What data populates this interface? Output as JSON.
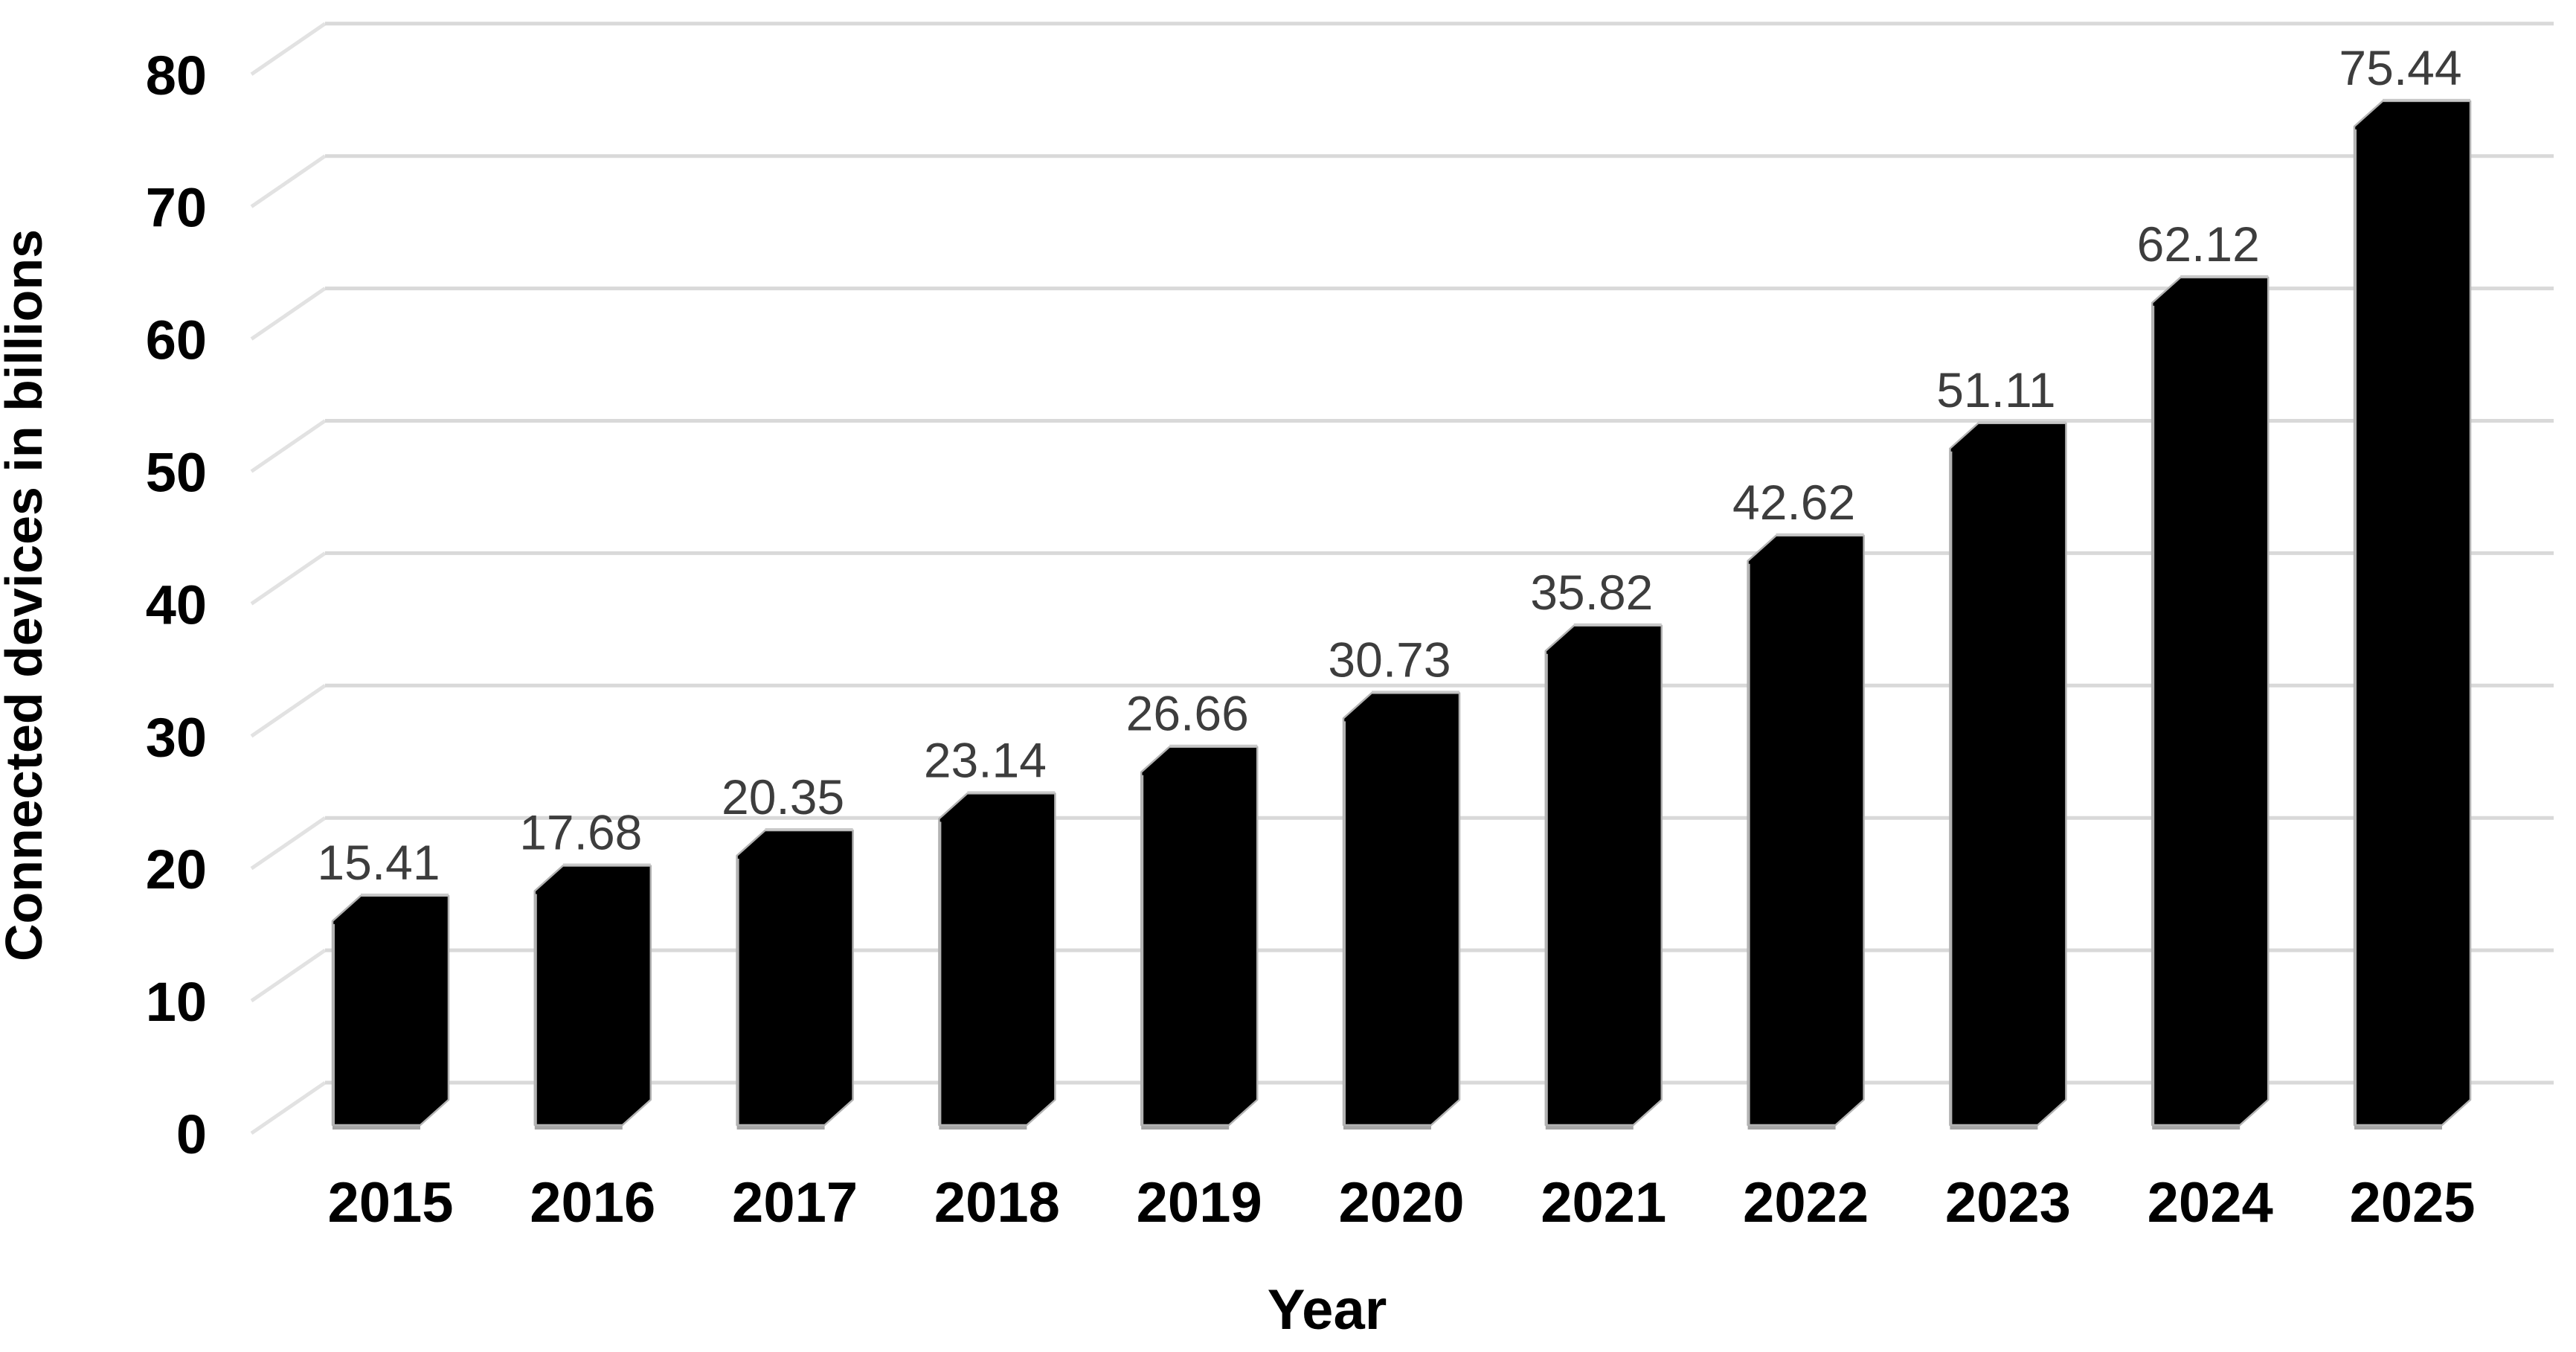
{
  "chart_data": {
    "type": "bar",
    "style": "3d-column",
    "title": "",
    "xlabel": "Year",
    "ylabel": "Connected devices in billions",
    "categories": [
      "2015",
      "2016",
      "2017",
      "2018",
      "2019",
      "2020",
      "2021",
      "2022",
      "2023",
      "2024",
      "2025"
    ],
    "values": [
      15.41,
      17.68,
      20.35,
      23.14,
      26.66,
      30.73,
      35.82,
      42.62,
      51.11,
      62.12,
      75.44
    ],
    "data_labels": [
      "15.41",
      "17.68",
      "20.35",
      "23.14",
      "26.66",
      "30.73",
      "35.82",
      "42.62",
      "51.11",
      "62.12",
      "75.44"
    ],
    "series_name": "Connected devices in billions",
    "ylim": [
      0,
      80
    ],
    "yticks": [
      0,
      10,
      20,
      30,
      40,
      50,
      60,
      70,
      80
    ],
    "grid": true,
    "legend": "none"
  },
  "colors": {
    "background": "#ffffff",
    "bar_fill": "#000000",
    "bar_edge_highlight": "#b3b3b3",
    "bar_top_highlight": "#c9c9c9",
    "bar_base_shadow": "#a6a6a6",
    "gridline": "#d9d9d9",
    "grid_diagonal": "#e2e2e2",
    "data_label_text": "#3d3d3d",
    "axis_text": "#000000"
  }
}
